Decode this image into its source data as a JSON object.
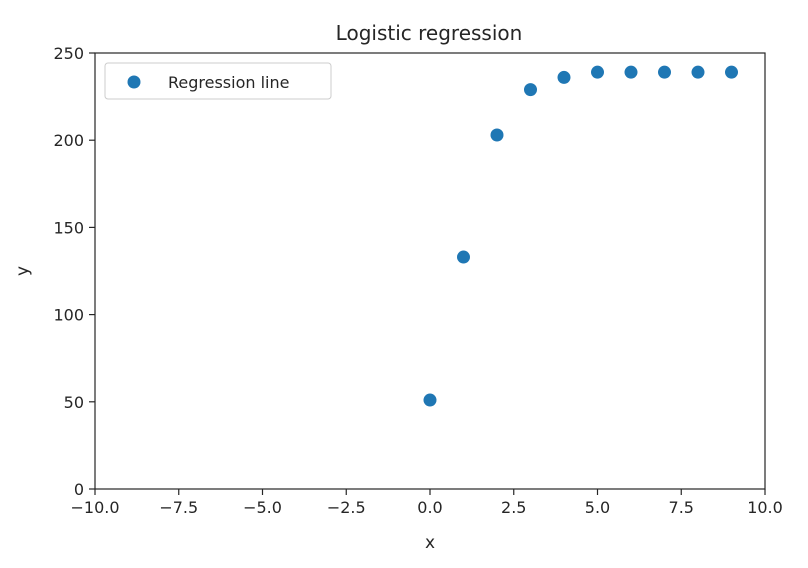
{
  "chart_data": {
    "type": "scatter",
    "title": "Logistic regression",
    "xlabel": "x",
    "ylabel": "y",
    "xlim": [
      -10.0,
      10.0
    ],
    "ylim": [
      0,
      250
    ],
    "xticks": [
      -10.0,
      -7.5,
      -5.0,
      -2.5,
      0.0,
      2.5,
      5.0,
      7.5,
      10.0
    ],
    "xtick_labels": [
      "−10.0",
      "−7.5",
      "−5.0",
      "−2.5",
      "0.0",
      "2.5",
      "5.0",
      "7.5",
      "10.0"
    ],
    "yticks": [
      0,
      50,
      100,
      150,
      200,
      250
    ],
    "ytick_labels": [
      "0",
      "50",
      "100",
      "150",
      "200",
      "250"
    ],
    "grid": false,
    "legend": {
      "position": "top-left"
    },
    "series": [
      {
        "name": "Regression line",
        "color": "#1f77b4",
        "x": [
          0,
          1,
          2,
          3,
          4,
          5,
          6,
          7,
          8,
          9
        ],
        "y": [
          51,
          133,
          203,
          229,
          236,
          239,
          239,
          239,
          239,
          239
        ]
      }
    ]
  }
}
